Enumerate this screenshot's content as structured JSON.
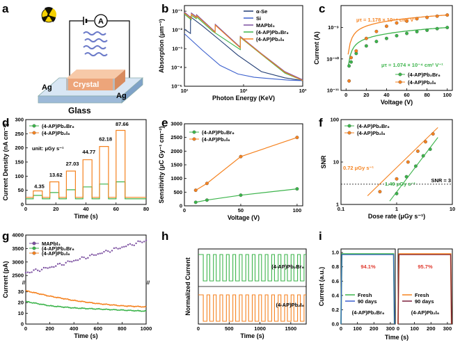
{
  "panel_letters": [
    "a",
    "b",
    "c",
    "d",
    "e",
    "f",
    "g",
    "h",
    "i"
  ],
  "colors": {
    "green": "#3cb44b",
    "orange": "#f5821f",
    "purple": "#7b4fa0",
    "navy": "#1f3b73",
    "blue": "#3a5fcd",
    "gray": "#666666"
  },
  "a": {
    "ag_left": "Ag",
    "ag_right": "Ag",
    "crystal": "Crystal",
    "glass": "Glass",
    "meter": "A"
  },
  "chart_data": [
    {
      "panel": "b",
      "type": "line",
      "xlabel": "Photon Energy (KeV)",
      "ylabel": "Absorption (μm⁻¹)",
      "xscale": "log",
      "yscale": "log",
      "xlim": [
        10,
        1000
      ],
      "ylim": [
        1e-05,
        0.2
      ],
      "xticks": [
        {
          "v": 10,
          "label": "10¹"
        },
        {
          "v": 100,
          "label": "10²"
        },
        {
          "v": 1000,
          "label": "10³"
        }
      ],
      "yticks": [
        {
          "v": 1e-05,
          "label": "10⁻⁵"
        },
        {
          "v": 0.0001,
          "label": "10⁻⁴"
        },
        {
          "v": 0.001,
          "label": "10⁻³"
        },
        {
          "v": 0.01,
          "label": "10⁻²"
        },
        {
          "v": 0.1,
          "label": "10⁻¹"
        }
      ],
      "legend_position": "top-right",
      "series": [
        {
          "name": "α-Se",
          "color": "#1f3b73",
          "x": [
            10,
            12.66,
            12.7,
            20,
            40,
            80,
            200,
            500,
            1000
          ],
          "y": [
            0.011,
            0.0065,
            0.05,
            0.017,
            0.0028,
            0.00045,
            6e-05,
            2.8e-05,
            2e-05
          ]
        },
        {
          "name": "Si",
          "color": "#3a5fcd",
          "x": [
            10,
            20,
            40,
            80,
            150,
            300,
            600,
            1000
          ],
          "y": [
            0.0063,
            0.00085,
            0.00013,
            4.5e-05,
            3e-05,
            2.5e-05,
            2.1e-05,
            2e-05
          ]
        },
        {
          "name": "MAPbI₃",
          "color": "#7b4fa0",
          "x": [
            10,
            13,
            13.1,
            15.9,
            16,
            33,
            33.2,
            88,
            88.1,
            200,
            500,
            1000
          ],
          "y": [
            0.09,
            0.045,
            0.08,
            0.05,
            0.065,
            0.008,
            0.02,
            0.0012,
            0.0045,
            0.00055,
            6e-05,
            2.2e-05
          ]
        },
        {
          "name": "(4-AP)Pb₂Br₆",
          "color": "#3cb44b",
          "x": [
            10,
            13,
            13.1,
            15.9,
            16,
            30,
            88,
            88.1,
            200,
            500,
            1000
          ],
          "y": [
            0.07,
            0.035,
            0.06,
            0.04,
            0.05,
            0.0085,
            0.0009,
            0.004,
            0.0005,
            5e-05,
            2e-05
          ]
        },
        {
          "name": "(4-AP)Pb₂I₆",
          "color": "#f5821f",
          "x": [
            10,
            13,
            13.1,
            15.9,
            16,
            33,
            33.2,
            88,
            88.1,
            200,
            500,
            1000
          ],
          "y": [
            0.08,
            0.04,
            0.07,
            0.045,
            0.058,
            0.0075,
            0.018,
            0.0011,
            0.0042,
            0.00052,
            5.5e-05,
            2e-05
          ]
        }
      ]
    },
    {
      "panel": "c",
      "type": "scatter",
      "xlabel": "Voltage (V)",
      "ylabel": "Current (A)",
      "yscale": "log",
      "xlim": [
        -5,
        105
      ],
      "ylim": [
        1e-11,
        5e-09
      ],
      "xticks": [
        {
          "v": 0,
          "label": "0"
        },
        {
          "v": 20,
          "label": "20"
        },
        {
          "v": 40,
          "label": "40"
        },
        {
          "v": 60,
          "label": "60"
        },
        {
          "v": 80,
          "label": "80"
        },
        {
          "v": 100,
          "label": "100"
        }
      ],
      "yticks": [
        {
          "v": 1e-11,
          "label": "10⁻¹¹"
        },
        {
          "v": 1e-10,
          "label": "10⁻¹⁰"
        },
        {
          "v": 1e-09,
          "label": "10⁻⁹"
        }
      ],
      "legend_position": "bottom-right",
      "annotations": [
        {
          "text": "μτ = 1.178 × 10⁻⁴ cm² V⁻¹",
          "color": "#f5821f"
        },
        {
          "text": "μτ = 1.074 × 10⁻⁴ cm² V⁻¹",
          "color": "#3cb44b"
        }
      ],
      "series": [
        {
          "name": "(4-AP)Pb₂Br₆",
          "color": "#3cb44b",
          "x": [
            3,
            5,
            10,
            20,
            30,
            40,
            50,
            60,
            70,
            80,
            90,
            100
          ],
          "y": [
            6e-11,
            8e-11,
            1.5e-10,
            2.6e-10,
            3.6e-10,
            4.5e-10,
            5.5e-10,
            6.5e-10,
            7.4e-10,
            8.2e-10,
            9.2e-10,
            1e-09
          ]
        },
        {
          "name": "(4-AP)Pb₂I₆",
          "color": "#f5821f",
          "x": [
            3,
            5,
            10,
            20,
            30,
            40,
            50,
            60,
            70,
            80,
            90,
            100
          ],
          "y": [
            2e-11,
            1.1e-10,
            1.8e-10,
            4.5e-10,
            7.5e-10,
            1.1e-09,
            1.4e-09,
            1.6e-09,
            1.9e-09,
            2.1e-09,
            2.3e-09,
            2.5e-09
          ]
        }
      ]
    },
    {
      "panel": "d",
      "type": "line",
      "xlabel": "Time (s)",
      "ylabel": "Current Density (nA cm⁻²)",
      "xlim": [
        0,
        80
      ],
      "ylim": [
        0,
        300
      ],
      "xticks": [
        {
          "v": 0,
          "label": "0"
        },
        {
          "v": 20,
          "label": "20"
        },
        {
          "v": 40,
          "label": "40"
        },
        {
          "v": 60,
          "label": "60"
        },
        {
          "v": 80,
          "label": "80"
        }
      ],
      "yticks": [
        {
          "v": 0,
          "label": "0"
        },
        {
          "v": 50,
          "label": "50"
        },
        {
          "v": 100,
          "label": "100"
        },
        {
          "v": 150,
          "label": "150"
        },
        {
          "v": 200,
          "label": "200"
        },
        {
          "v": 250,
          "label": "250"
        },
        {
          "v": 300,
          "label": "300"
        }
      ],
      "legend_position": "top-left",
      "unit_note": "unit: μGy s⁻¹",
      "dose_labels": [
        {
          "x": 9,
          "y": 58,
          "text": "4.35"
        },
        {
          "x": 20,
          "y": 98,
          "text": "13.62"
        },
        {
          "x": 31,
          "y": 138,
          "text": "27.03"
        },
        {
          "x": 42,
          "y": 180,
          "text": "44.77"
        },
        {
          "x": 53,
          "y": 225,
          "text": "62.18"
        },
        {
          "x": 64,
          "y": 278,
          "text": "87.66"
        }
      ],
      "pulses": {
        "on": [
          [
            5,
            11
          ],
          [
            16,
            22
          ],
          [
            27,
            33
          ],
          [
            38,
            44
          ],
          [
            49,
            55
          ],
          [
            60,
            66
          ]
        ],
        "green_base": 20,
        "orange_base": 25,
        "green_on": [
          32,
          42,
          52,
          62,
          72,
          80
        ],
        "orange_on": [
          48,
          80,
          118,
          158,
          205,
          262
        ]
      },
      "series": [
        {
          "name": "(4-AP)Pb₂Br₆",
          "color": "#3cb44b"
        },
        {
          "name": "(4-AP)Pb₂I₆",
          "color": "#f5821f"
        }
      ]
    },
    {
      "panel": "e",
      "type": "line",
      "xlabel": "Voltage (V)",
      "ylabel": "Sensitivity (μC Gy⁻¹ cm⁻²)",
      "xlim": [
        0,
        105
      ],
      "ylim": [
        0,
        3000
      ],
      "xticks": [
        {
          "v": 0,
          "label": "0"
        },
        {
          "v": 50,
          "label": "50"
        },
        {
          "v": 100,
          "label": "100"
        }
      ],
      "yticks": [
        {
          "v": 0,
          "label": "0"
        },
        {
          "v": 500,
          "label": "500"
        },
        {
          "v": 1000,
          "label": "1000"
        },
        {
          "v": 1500,
          "label": "1500"
        },
        {
          "v": 2000,
          "label": "2000"
        },
        {
          "v": 2500,
          "label": "2500"
        },
        {
          "v": 3000,
          "label": "3000"
        }
      ],
      "legend_position": "top-left",
      "series": [
        {
          "name": "(4-AP)Pb₂Br₆",
          "color": "#3cb44b",
          "x": [
            10,
            20,
            50,
            100
          ],
          "y": [
            130,
            210,
            390,
            620
          ]
        },
        {
          "name": "(4-AP)Pb₂I₆",
          "color": "#f5821f",
          "x": [
            10,
            20,
            50,
            100
          ],
          "y": [
            570,
            820,
            1800,
            2500
          ]
        }
      ]
    },
    {
      "panel": "f",
      "type": "scatter",
      "xlabel": "Dose rate (μGy s⁻¹)",
      "ylabel": "SNR",
      "xscale": "log",
      "yscale": "log",
      "xlim": [
        0.1,
        10
      ],
      "ylim": [
        1,
        100
      ],
      "xticks": [
        {
          "v": 0.1,
          "label": "0.1"
        },
        {
          "v": 1,
          "label": "1"
        },
        {
          "v": 10,
          "label": "10"
        }
      ],
      "yticks": [
        {
          "v": 1,
          "label": "1"
        },
        {
          "v": 10,
          "label": "10"
        },
        {
          "v": 100,
          "label": "100"
        }
      ],
      "legend_position": "top-left",
      "threshold": {
        "value": 3,
        "label": "SNR = 3"
      },
      "annotations": [
        {
          "text": "0.72 μGy s⁻¹",
          "color": "#f5821f"
        },
        {
          "text": "1.49 μGy s⁻¹",
          "color": "#3cb44b"
        }
      ],
      "series": [
        {
          "name": "(4-AP)Pb₂Br₆",
          "color": "#3cb44b",
          "x": [
            1.0,
            1.5,
            2.2,
            3.0,
            4.0
          ],
          "y": [
            1.8,
            4.5,
            8,
            14,
            20
          ],
          "fit": [
            [
              0.75,
              1.2
            ],
            [
              5.5,
              38
            ]
          ]
        },
        {
          "name": "(4-AP)Pb₂I₆",
          "color": "#f5821f",
          "x": [
            0.5,
            1.0,
            1.6,
            2.4,
            3.3,
            4.5
          ],
          "y": [
            2,
            4,
            10,
            18,
            30,
            46
          ],
          "fit": [
            [
              0.3,
              1.6
            ],
            [
              5.5,
              65
            ]
          ]
        }
      ]
    },
    {
      "panel": "g",
      "type": "line",
      "xlabel": "Time (s)",
      "ylabel": "Current (pA)",
      "xlim": [
        0,
        1000
      ],
      "ylim": [
        0,
        4000
      ],
      "xticks": [
        {
          "v": 0,
          "label": "0"
        },
        {
          "v": 200,
          "label": "200"
        },
        {
          "v": 400,
          "label": "400"
        },
        {
          "v": 600,
          "label": "600"
        },
        {
          "v": 800,
          "label": "800"
        },
        {
          "v": 1000,
          "label": "1000"
        }
      ],
      "ytick_labels": [
        "0",
        "10",
        "20",
        "30",
        "2500",
        "3000",
        "3500",
        "4000"
      ],
      "legend_position": "top-left",
      "series": [
        {
          "name": "MAPbI₃",
          "color": "#7b4fa0",
          "x": [
            0,
            200,
            400,
            600,
            800,
            1000
          ],
          "y": [
            2600,
            2800,
            3050,
            3300,
            3550,
            3800
          ]
        },
        {
          "name": "(4-AP)Pb₂Br₆",
          "color": "#3cb44b",
          "x": [
            0,
            200,
            400,
            600,
            800,
            1000
          ],
          "y": [
            21,
            17,
            15,
            14,
            13,
            12
          ]
        },
        {
          "name": "(4-AP)Pb₂I₆",
          "color": "#f5821f",
          "x": [
            0,
            200,
            400,
            600,
            800,
            1000
          ],
          "y": [
            31,
            26,
            22,
            19,
            17,
            16
          ]
        }
      ]
    },
    {
      "panel": "h",
      "type": "line",
      "xlabel": "Time (s)",
      "ylabel": "Normalized Current",
      "xlim": [
        0,
        1750
      ],
      "xticks": [
        {
          "v": 0,
          "label": "0"
        },
        {
          "v": 500,
          "label": "500"
        },
        {
          "v": 1000,
          "label": "1000"
        },
        {
          "v": 1500,
          "label": "1500"
        }
      ],
      "cycles": 16,
      "series": [
        {
          "name": "(4-AP)Pb₂Br₆",
          "color": "#3cb44b"
        },
        {
          "name": "(4-AP)Pb₂I₆",
          "color": "#f5821f"
        }
      ]
    },
    {
      "panel": "i",
      "type": "line",
      "xlabel": "Time (s)",
      "ylabel": "Current (a.u.)",
      "xlim": [
        0,
        330
      ],
      "ylim": [
        0,
        1.05
      ],
      "xticks": [
        {
          "v": 0,
          "label": "0"
        },
        {
          "v": 100,
          "label": "100"
        },
        {
          "v": 200,
          "label": "200"
        },
        {
          "v": 300,
          "label": "300"
        }
      ],
      "yticks": [
        {
          "v": 0,
          "label": "0.0"
        },
        {
          "v": 0.2,
          "label": "0.2"
        },
        {
          "v": 0.4,
          "label": "0.4"
        },
        {
          "v": 0.6,
          "label": "0.6"
        },
        {
          "v": 0.8,
          "label": "0.8"
        },
        {
          "v": 1.0,
          "label": "1.0"
        }
      ],
      "subpanels": [
        {
          "material": "(4-AP)Pb₂Br₆",
          "retention": "94.1%",
          "series": [
            {
              "name": "Fresh",
              "color": "#3cb44b"
            },
            {
              "name": "90 days",
              "color": "#3a5fcd"
            }
          ]
        },
        {
          "material": "(4-AP)Pb₂I₆",
          "retention": "95.7%",
          "series": [
            {
              "name": "Fresh",
              "color": "#f5821f"
            },
            {
              "name": "90 days",
              "color": "#7b1f3a"
            }
          ]
        }
      ]
    }
  ]
}
